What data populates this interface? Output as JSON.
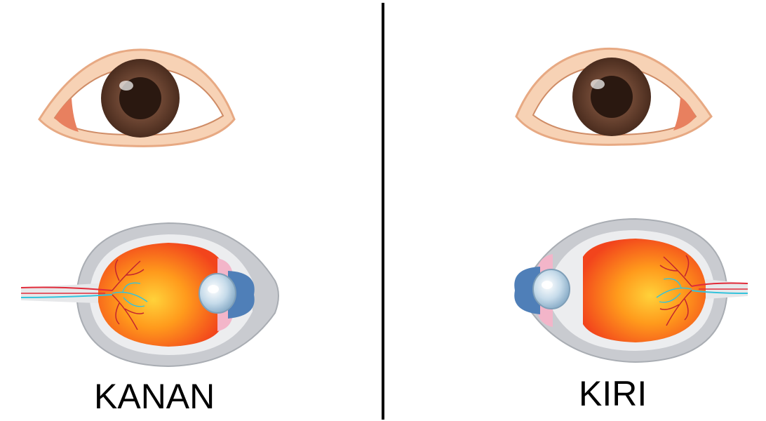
{
  "panels": {
    "left": {
      "label": "KANAN"
    },
    "right": {
      "label": "KIRI"
    }
  },
  "colors": {
    "skin": "#f7d2b5",
    "skin_outline": "#e9a982",
    "caruncle": "#e88060",
    "iris": "#6a4434",
    "pupil": "#2b1a12",
    "sclera_outer": "#c9cbcf",
    "retina_orange": "#ff8a1e",
    "retina_red": "#f4511e",
    "lens": "#b9d4e6",
    "cornea_blue": "#4f8cc9",
    "nerve_red": "#e12b3a",
    "nerve_cyan": "#33c3dc"
  },
  "icons": [
    "external-eye-icon",
    "eyeball-cross-section-icon"
  ]
}
